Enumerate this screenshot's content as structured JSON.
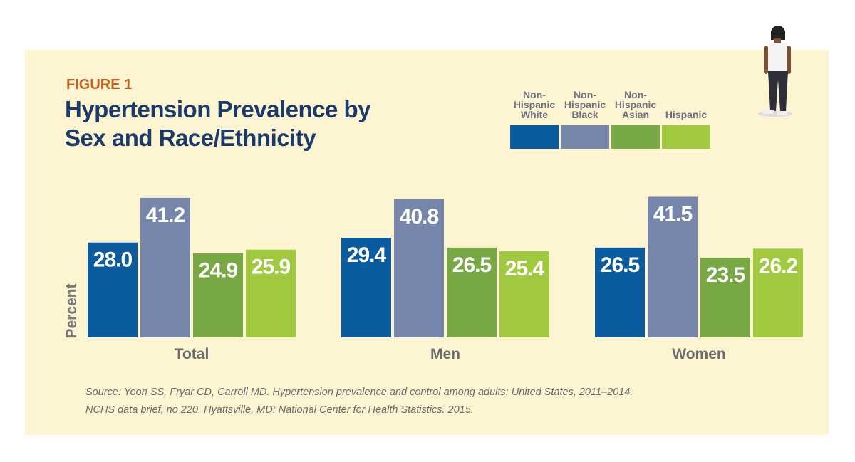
{
  "chart_data": {
    "type": "bar",
    "figure_label": "FIGURE 1",
    "title": "Hypertension Prevalence by Sex and Race/Ethnicity",
    "y_label": "Percent",
    "categories": [
      "Total",
      "Men",
      "Women"
    ],
    "series": [
      {
        "name": "Non-Hispanic White",
        "color": "#0b5c9e",
        "values": [
          28.0,
          29.4,
          26.5
        ],
        "value_labels": [
          "28.0",
          "29.4",
          "26.5"
        ]
      },
      {
        "name": "Non-Hispanic Black",
        "color": "#7686aa",
        "values": [
          41.2,
          40.8,
          41.5
        ],
        "value_labels": [
          "41.2",
          "40.8",
          "41.5"
        ]
      },
      {
        "name": "Non-Hispanic Asian",
        "color": "#77a843",
        "values": [
          24.9,
          26.5,
          23.5
        ],
        "value_labels": [
          "24.9",
          "26.5",
          "23.5"
        ]
      },
      {
        "name": "Hispanic",
        "color": "#a0c940",
        "values": [
          25.9,
          25.4,
          26.2
        ],
        "value_labels": [
          "25.9",
          "25.4",
          "26.2"
        ]
      }
    ],
    "source": [
      "Source: Yoon SS, Fryar CD, Carroll MD. Hypertension prevalence and control among adults: United States, 2011–2014.",
      "NCHS data brief, no 220. Hyattsville, MD: National Center for Health Statistics. 2015."
    ]
  }
}
